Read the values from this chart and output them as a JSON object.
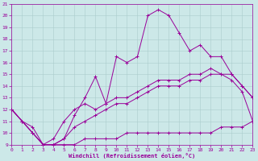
{
  "xlabel": "Windchill (Refroidissement éolien,°C)",
  "xlim": [
    0,
    23
  ],
  "ylim": [
    9,
    21
  ],
  "xticks": [
    0,
    1,
    2,
    3,
    4,
    5,
    6,
    7,
    8,
    9,
    10,
    11,
    12,
    13,
    14,
    15,
    16,
    17,
    18,
    19,
    20,
    21,
    22,
    23
  ],
  "yticks": [
    9,
    10,
    11,
    12,
    13,
    14,
    15,
    16,
    17,
    18,
    19,
    20,
    21
  ],
  "background_color": "#cce8e8",
  "grid_color": "#aacccc",
  "line_color": "#990099",
  "line_wavy_x": [
    0,
    1,
    2,
    3,
    4,
    5,
    6,
    7,
    8,
    9,
    10,
    11,
    12,
    13,
    14,
    15,
    16,
    17,
    18,
    19,
    20,
    21,
    22,
    23
  ],
  "line_wavy_y": [
    12.0,
    11.0,
    10.5,
    9.0,
    9.0,
    9.5,
    11.5,
    13.0,
    14.8,
    12.5,
    16.5,
    16.0,
    16.5,
    20.0,
    20.5,
    20.0,
    18.5,
    17.0,
    17.5,
    16.5,
    16.5,
    15.0,
    14.0,
    13.0
  ],
  "line_top_x": [
    0,
    1,
    2,
    3,
    4,
    5,
    6,
    7,
    8,
    9,
    10,
    11,
    12,
    13,
    14,
    15,
    16,
    17,
    18,
    19,
    20,
    21,
    22,
    23
  ],
  "line_top_y": [
    12.0,
    11.0,
    10.0,
    9.0,
    9.5,
    11.0,
    12.0,
    12.5,
    12.0,
    12.5,
    13.0,
    13.0,
    13.5,
    14.0,
    14.5,
    14.5,
    14.5,
    15.0,
    15.0,
    15.5,
    15.0,
    15.0,
    14.0,
    13.0
  ],
  "line_mid_x": [
    0,
    1,
    2,
    3,
    4,
    5,
    6,
    7,
    8,
    9,
    10,
    11,
    12,
    13,
    14,
    15,
    16,
    17,
    18,
    19,
    20,
    21,
    22,
    23
  ],
  "line_mid_y": [
    12.0,
    11.0,
    10.0,
    9.0,
    9.0,
    9.5,
    10.5,
    11.0,
    11.5,
    12.0,
    12.5,
    12.5,
    13.0,
    13.5,
    14.0,
    14.0,
    14.0,
    14.5,
    14.5,
    15.0,
    15.0,
    14.5,
    13.5,
    11.0
  ],
  "line_bot_x": [
    0,
    1,
    2,
    3,
    4,
    5,
    6,
    7,
    8,
    9,
    10,
    11,
    12,
    13,
    14,
    15,
    16,
    17,
    18,
    19,
    20,
    21,
    22,
    23
  ],
  "line_bot_y": [
    12.0,
    11.0,
    10.0,
    9.0,
    9.0,
    9.0,
    9.0,
    9.5,
    9.5,
    9.5,
    9.5,
    10.0,
    10.0,
    10.0,
    10.0,
    10.0,
    10.0,
    10.0,
    10.0,
    10.0,
    10.5,
    10.5,
    10.5,
    11.0
  ]
}
